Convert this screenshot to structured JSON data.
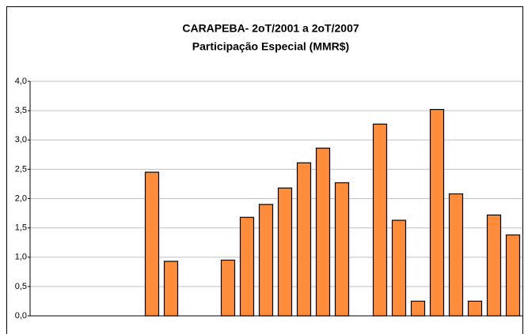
{
  "chart_data": {
    "type": "bar",
    "title": "CARAPEBA- 2oT/2001 a 2oT/2007",
    "subtitle": "Participação Especial (MMR$)",
    "categories": [
      null,
      null,
      null,
      null,
      null,
      null,
      null,
      null,
      null,
      null,
      null,
      null,
      null,
      null,
      null,
      null,
      null,
      null,
      null,
      null,
      null,
      null,
      null,
      null,
      null
    ],
    "values": [
      null,
      null,
      null,
      null,
      null,
      2.45,
      0.93,
      null,
      null,
      0.95,
      1.68,
      1.9,
      2.18,
      2.61,
      2.86,
      2.27,
      null,
      3.27,
      1.63,
      0.25,
      3.52,
      2.08,
      0.25,
      1.72,
      1.38
    ],
    "color": "#ff8c3a",
    "ylim": [
      0,
      4
    ],
    "yticks": [
      {
        "value": 0,
        "label": "0,0"
      },
      {
        "value": 0.5,
        "label": "0,5"
      },
      {
        "value": 1,
        "label": "1,0"
      },
      {
        "value": 1.5,
        "label": "1,5"
      },
      {
        "value": 2,
        "label": "2,0"
      },
      {
        "value": 2.5,
        "label": "2,5"
      },
      {
        "value": 3,
        "label": "3,0"
      },
      {
        "value": 3.5,
        "label": "3,5"
      },
      {
        "value": 4,
        "label": "4,0"
      }
    ],
    "grid": true
  }
}
